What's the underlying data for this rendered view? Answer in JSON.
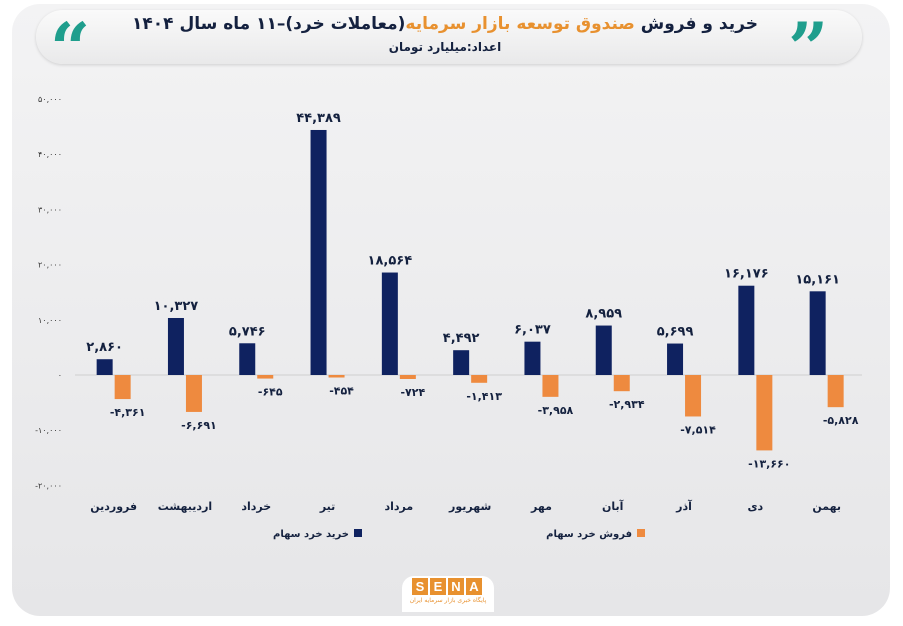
{
  "header": {
    "title_part1": "خرید و فروش",
    "title_highlight": "صندوق توسعه بازار سرمایه",
    "title_part2": "(معاملات خرد)–۱۱ ماه سال ۱۴۰۴",
    "subtitle": "اعداد:میلیارد تومان"
  },
  "logo": {
    "text": "SENA",
    "subtitle": "پایگاه خبری بازار سرمایه ایران"
  },
  "colors": {
    "buy": "#0f2260",
    "sell": "#ee8a3f",
    "accent": "#1f9e8d",
    "highlight": "#e8912f"
  },
  "chart_data": {
    "type": "bar",
    "title": "خرید و فروش صندوق توسعه بازار سرمایه (معاملات خرد)–۱۱ ماه سال ۱۴۰۴",
    "ylabel": "میلیارد تومان",
    "ylim": [
      -20000,
      50000
    ],
    "yticks": [
      50000,
      40000,
      30000,
      20000,
      10000,
      0,
      -10000,
      -20000
    ],
    "ytick_labels": [
      "۵۰,۰۰۰",
      "۴۰,۰۰۰",
      "۳۰,۰۰۰",
      "۲۰,۰۰۰",
      "۱۰,۰۰۰",
      "۰",
      "-۱۰,۰۰۰",
      "-۲۰,۰۰۰"
    ],
    "grid": false,
    "legend": "bottom",
    "categories": [
      "فروردین",
      "اردیبهشت",
      "خرداد",
      "تیر",
      "مرداد",
      "شهریور",
      "مهر",
      "آبان",
      "آذر",
      "دی",
      "بهمن"
    ],
    "series": [
      {
        "name": "خرید خرد سهام",
        "values": [
          2860,
          10327,
          5746,
          44389,
          18564,
          4492,
          6037,
          8959,
          5699,
          16176,
          15161
        ],
        "labels": [
          "۲,۸۶۰",
          "۱۰,۳۲۷",
          "۵,۷۴۶",
          "۴۴,۳۸۹",
          "۱۸,۵۶۴",
          "۴,۴۹۲",
          "۶,۰۳۷",
          "۸,۹۵۹",
          "۵,۶۹۹",
          "۱۶,۱۷۶",
          "۱۵,۱۶۱"
        ]
      },
      {
        "name": "فروش خرد سهام",
        "values": [
          -4361,
          -6691,
          -645,
          -454,
          -724,
          -1413,
          -3958,
          -2934,
          -7514,
          -13660,
          -5828
        ],
        "labels": [
          "-۴,۳۶۱",
          "-۶,۶۹۱",
          "-۶۴۵",
          "-۴۵۴",
          "-۷۲۴",
          "-۱,۴۱۳",
          "-۳,۹۵۸",
          "-۲,۹۳۴",
          "-۷,۵۱۴",
          "-۱۳,۶۶۰",
          "-۵,۸۲۸"
        ]
      }
    ]
  }
}
